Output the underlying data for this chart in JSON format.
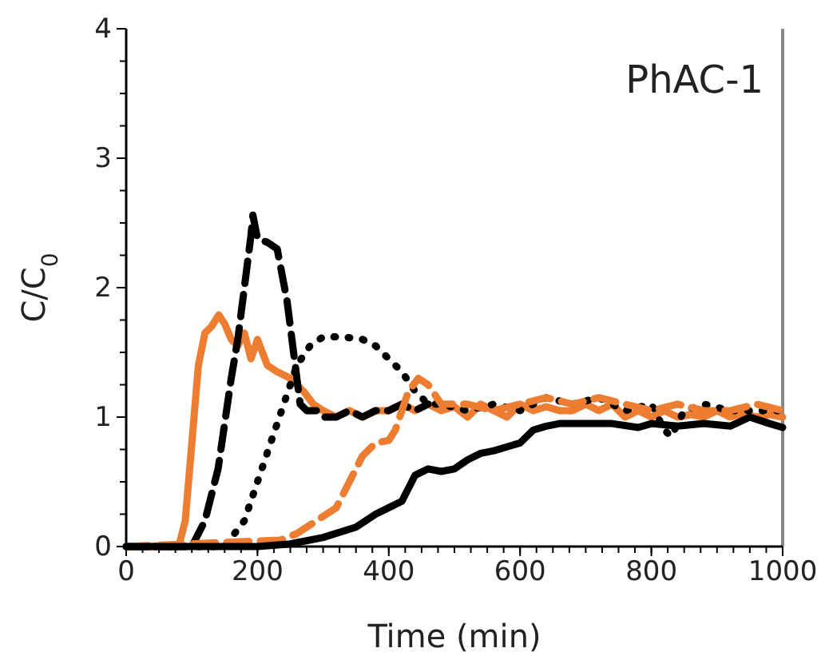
{
  "chart_data": {
    "type": "line",
    "xlabel": "Time (min)",
    "ylabel": "C/C$_{0}$",
    "annotations": [
      "PhAC-1"
    ],
    "xlim": [
      0,
      1000
    ],
    "xticks": [
      0,
      200,
      400,
      600,
      800,
      1000
    ],
    "ylim": [
      0,
      4
    ],
    "yticks": [
      0,
      1,
      2,
      3,
      4
    ],
    "grid": false,
    "marker": "none",
    "series": [
      {
        "color": "#ed7d31",
        "line_style": "solid",
        "x": [
          0,
          80,
          90,
          100,
          110,
          120,
          130,
          141,
          150,
          160,
          170,
          180,
          190,
          200,
          215,
          230,
          250,
          270,
          285,
          300,
          320,
          340,
          360,
          380,
          400,
          420,
          440,
          460,
          480,
          500,
          520,
          540,
          560,
          580,
          600,
          620,
          640,
          660,
          680,
          700,
          720,
          740,
          760,
          780,
          800,
          820,
          840,
          860,
          880,
          900,
          920,
          940,
          960,
          980,
          1000
        ],
        "values": [
          0,
          0,
          0.2,
          0.8,
          1.4,
          1.65,
          1.7,
          1.79,
          1.72,
          1.6,
          1.55,
          1.65,
          1.45,
          1.6,
          1.4,
          1.35,
          1.3,
          1.2,
          1.1,
          1.05,
          1.0,
          1.05,
          1.0,
          1.05,
          1.05,
          1.1,
          1.05,
          1.1,
          1.05,
          1.08,
          1.0,
          1.1,
          1.05,
          1.0,
          1.1,
          1.05,
          1.08,
          1.05,
          1.05,
          1.1,
          1.05,
          1.1,
          1.0,
          1.05,
          1.0,
          1.05,
          1.0,
          1.02,
          1.0,
          1.05,
          1.0,
          1.03,
          1.0,
          1.02,
          1.0
        ]
      },
      {
        "color": "#000000",
        "line_style": "dashed",
        "x": [
          0,
          100,
          120,
          140,
          160,
          170,
          180,
          190,
          193,
          200,
          215,
          230,
          245,
          255,
          265,
          275,
          290,
          300,
          320,
          340,
          360,
          380,
          400,
          420,
          440,
          460
        ],
        "values": [
          0,
          0,
          0.2,
          0.6,
          1.3,
          1.6,
          2.0,
          2.4,
          2.56,
          2.38,
          2.35,
          2.3,
          1.9,
          1.5,
          1.1,
          1.05,
          1.05,
          1.0,
          1.0,
          1.05,
          1.0,
          1.05,
          1.05,
          1.1,
          1.05,
          1.1
        ]
      },
      {
        "color": "#000000",
        "line_style": "dotted",
        "x": [
          0,
          150,
          180,
          200,
          220,
          240,
          260,
          280,
          300,
          330,
          360,
          380,
          400,
          420,
          440,
          460,
          480,
          520,
          560,
          600,
          640,
          680,
          720,
          760,
          800,
          820,
          830,
          850,
          880,
          920,
          960,
          1000
        ],
        "values": [
          0,
          0,
          0.2,
          0.5,
          0.8,
          1.1,
          1.4,
          1.55,
          1.62,
          1.62,
          1.6,
          1.55,
          1.45,
          1.35,
          1.2,
          1.1,
          1.1,
          1.05,
          1.1,
          1.05,
          1.15,
          1.1,
          1.15,
          1.05,
          1.1,
          0.9,
          0.85,
          1.05,
          1.1,
          1.05,
          1.05,
          1.05
        ]
      },
      {
        "color": "#ed7d31",
        "line_style": "dashed",
        "x": [
          0,
          235,
          260,
          290,
          320,
          340,
          360,
          380,
          400,
          410,
          430,
          445,
          460,
          480,
          520,
          560,
          600,
          640,
          680,
          720,
          760,
          800,
          840,
          880,
          920,
          960,
          1000
        ],
        "values": [
          0,
          0.05,
          0.1,
          0.2,
          0.3,
          0.5,
          0.7,
          0.8,
          0.82,
          0.9,
          1.2,
          1.3,
          1.25,
          1.1,
          1.1,
          1.05,
          1.1,
          1.15,
          1.1,
          1.15,
          1.1,
          1.05,
          1.1,
          1.05,
          1.05,
          1.1,
          1.05
        ]
      },
      {
        "color": "#000000",
        "line_style": "solid",
        "x": [
          0,
          200,
          250,
          300,
          350,
          380,
          400,
          420,
          440,
          460,
          480,
          500,
          520,
          540,
          560,
          580,
          600,
          620,
          640,
          660,
          700,
          740,
          780,
          800,
          840,
          880,
          920,
          950,
          980,
          1000
        ],
        "values": [
          0,
          0,
          0.02,
          0.07,
          0.15,
          0.25,
          0.3,
          0.35,
          0.55,
          0.6,
          0.58,
          0.6,
          0.67,
          0.72,
          0.74,
          0.77,
          0.8,
          0.9,
          0.93,
          0.95,
          0.95,
          0.95,
          0.92,
          0.95,
          0.93,
          0.95,
          0.93,
          1.0,
          0.95,
          0.92
        ]
      }
    ]
  }
}
